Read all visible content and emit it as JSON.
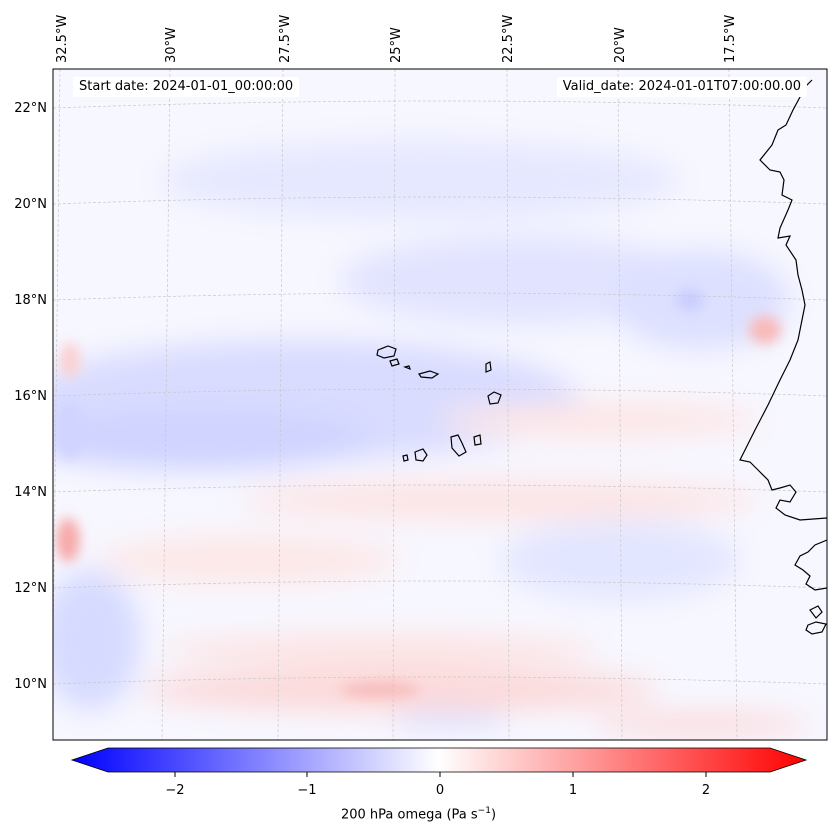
{
  "map": {
    "lon_labels": [
      "32.5°W",
      "30°W",
      "27.5°W",
      "25°W",
      "22.5°W",
      "20°W",
      "17.5°W"
    ],
    "lat_labels": [
      "22°N",
      "20°N",
      "18°N",
      "16°N",
      "14°N",
      "12°N",
      "10°N"
    ],
    "start_date": "Start date: 2024-01-01_00:00:00",
    "valid_date": "Valid_date: 2024-01-01T07:00:00.00"
  },
  "colorbar": {
    "ticks": [
      "−2",
      "−1",
      "0",
      "1",
      "2"
    ],
    "tick_values": [
      -2,
      -1,
      0,
      1,
      2
    ],
    "range": [
      -2.5,
      2.5
    ],
    "label_main": "200 hPa omega (Pa s",
    "label_sup": "−1",
    "label_end": ")",
    "colormap": "bwr",
    "color_low": "#0000ff",
    "color_mid": "#ffffff",
    "color_high": "#ff0000"
  }
}
